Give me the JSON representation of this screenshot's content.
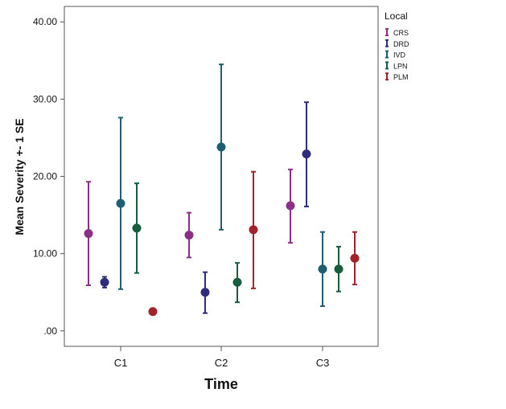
{
  "chart_data": {
    "type": "error-bar",
    "xlabel": "Time",
    "ylabel": "Mean Severity +- 1 SE",
    "categories": [
      "C1",
      "C2",
      "C3"
    ],
    "yticks": [
      {
        "value": 0,
        "label": ".00"
      },
      {
        "value": 10,
        "label": "10.00"
      },
      {
        "value": 20,
        "label": "20.00"
      },
      {
        "value": 30,
        "label": "30.00"
      },
      {
        "value": 40,
        "label": "40.00"
      }
    ],
    "ylim": [
      -2.0,
      42.0
    ],
    "grid": false,
    "legend": {
      "title": "Local",
      "placement": "right"
    },
    "series": [
      {
        "name": "CRS",
        "color": "#8b2f87",
        "mean": [
          12.6,
          12.4,
          16.2
        ],
        "lower": [
          5.9,
          9.5,
          11.4
        ],
        "upper": [
          19.3,
          15.3,
          20.9
        ]
      },
      {
        "name": "DRD",
        "color": "#2f2d7b",
        "mean": [
          6.3,
          5.0,
          22.9
        ],
        "lower": [
          5.6,
          2.3,
          16.1
        ],
        "upper": [
          7.0,
          7.6,
          29.6
        ]
      },
      {
        "name": "IVD",
        "color": "#1f5f73",
        "mean": [
          16.5,
          23.8,
          8.0
        ],
        "lower": [
          5.4,
          13.1,
          3.2
        ],
        "upper": [
          27.6,
          34.5,
          12.8
        ]
      },
      {
        "name": "LPN",
        "color": "#155e3e",
        "mean": [
          13.3,
          6.3,
          8.0
        ],
        "lower": [
          7.5,
          3.7,
          5.1
        ],
        "upper": [
          19.1,
          8.8,
          10.9
        ]
      },
      {
        "name": "PLM",
        "color": "#a3232a",
        "mean": [
          2.5,
          13.1,
          9.4
        ],
        "lower": [
          2.5,
          5.5,
          6.0
        ],
        "upper": [
          2.5,
          20.6,
          12.8
        ]
      }
    ]
  }
}
